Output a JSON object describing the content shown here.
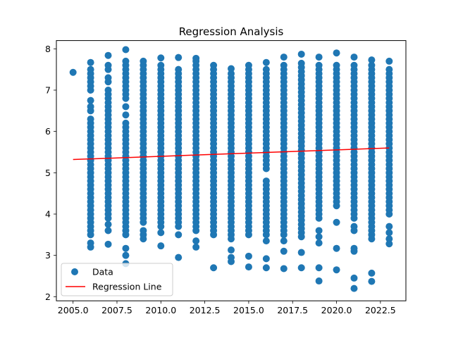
{
  "chart_data": {
    "type": "scatter",
    "title": "Regression Analysis",
    "xlabel": "",
    "ylabel": "",
    "xlim": [
      2004.05,
      2023.95
    ],
    "ylim": [
      1.9,
      8.2
    ],
    "xticks": [
      2005.0,
      2007.5,
      2010.0,
      2012.5,
      2015.0,
      2017.5,
      2020.0,
      2022.5
    ],
    "xtick_labels": [
      "2005.0",
      "2007.5",
      "2010.0",
      "2012.5",
      "2015.0",
      "2017.5",
      "2020.0",
      "2022.5"
    ],
    "yticks": [
      2,
      3,
      4,
      5,
      6,
      7,
      8
    ],
    "ytick_labels": [
      "2",
      "3",
      "4",
      "5",
      "6",
      "7",
      "8"
    ],
    "grid": false,
    "legend_position": "lower-left",
    "series": [
      {
        "name": "Data",
        "kind": "scatter",
        "color": "#1f77b4",
        "columns": [
          {
            "x": 2005,
            "y": [
              7.43
            ]
          },
          {
            "x": 2006,
            "y": [
              3.2,
              3.3,
              3.5,
              3.6,
              3.7,
              3.8,
              3.9,
              4.0,
              4.1,
              4.2,
              4.3,
              4.4,
              4.5,
              4.6,
              4.7,
              4.8,
              4.9,
              5.0,
              5.1,
              5.2,
              5.3,
              5.4,
              5.5,
              5.6,
              5.7,
              5.8,
              5.9,
              6.0,
              6.1,
              6.2,
              6.3,
              6.5,
              6.6,
              6.75,
              7.0,
              7.1,
              7.2,
              7.3,
              7.4,
              7.5,
              7.67
            ]
          },
          {
            "x": 2007,
            "y": [
              3.27,
              3.6,
              3.75,
              3.9,
              4.0,
              4.1,
              4.2,
              4.3,
              4.4,
              4.5,
              4.6,
              4.7,
              4.8,
              4.9,
              5.0,
              5.1,
              5.2,
              5.3,
              5.4,
              5.5,
              5.6,
              5.7,
              5.8,
              5.9,
              6.0,
              6.1,
              6.2,
              6.3,
              6.4,
              6.5,
              6.6,
              6.7,
              6.8,
              6.9,
              7.0,
              7.2,
              7.3,
              7.5,
              7.6,
              7.84
            ]
          },
          {
            "x": 2008,
            "y": [
              2.8,
              3.0,
              3.17,
              3.5,
              3.6,
              3.7,
              3.8,
              3.9,
              4.0,
              4.1,
              4.2,
              4.3,
              4.4,
              4.5,
              4.6,
              4.7,
              4.8,
              4.9,
              5.0,
              5.1,
              5.2,
              5.3,
              5.4,
              5.5,
              5.6,
              5.7,
              5.8,
              5.9,
              6.0,
              6.1,
              6.2,
              6.4,
              6.6,
              6.8,
              6.9,
              7.0,
              7.1,
              7.2,
              7.3,
              7.4,
              7.5,
              7.6,
              7.7,
              7.98
            ]
          },
          {
            "x": 2009,
            "y": [
              3.4,
              3.5,
              3.6,
              3.8,
              3.9,
              4.0,
              4.1,
              4.2,
              4.3,
              4.4,
              4.5,
              4.6,
              4.7,
              4.8,
              4.9,
              5.0,
              5.1,
              5.2,
              5.3,
              5.4,
              5.5,
              5.6,
              5.7,
              5.8,
              5.9,
              6.0,
              6.1,
              6.2,
              6.3,
              6.4,
              6.5,
              6.6,
              6.7,
              6.8,
              6.9,
              7.0,
              7.1,
              7.2,
              7.3,
              7.4,
              7.5,
              7.6,
              7.7
            ]
          },
          {
            "x": 2010,
            "y": [
              3.23,
              3.55,
              3.7,
              3.8,
              3.9,
              4.0,
              4.1,
              4.2,
              4.3,
              4.4,
              4.5,
              4.6,
              4.7,
              4.8,
              4.9,
              5.0,
              5.1,
              5.2,
              5.3,
              5.4,
              5.5,
              5.6,
              5.7,
              5.8,
              5.9,
              6.0,
              6.1,
              6.2,
              6.3,
              6.4,
              6.5,
              6.6,
              6.7,
              6.8,
              6.9,
              7.0,
              7.1,
              7.2,
              7.3,
              7.4,
              7.5,
              7.6,
              7.78
            ]
          },
          {
            "x": 2011,
            "y": [
              2.95,
              3.5,
              3.7,
              3.8,
              3.9,
              4.0,
              4.1,
              4.2,
              4.3,
              4.4,
              4.5,
              4.6,
              4.7,
              4.8,
              4.9,
              5.0,
              5.1,
              5.2,
              5.3,
              5.4,
              5.5,
              5.6,
              5.7,
              5.8,
              5.9,
              6.0,
              6.1,
              6.2,
              6.3,
              6.4,
              6.5,
              6.6,
              6.7,
              6.8,
              6.9,
              7.0,
              7.1,
              7.2,
              7.3,
              7.4,
              7.5,
              7.79
            ]
          },
          {
            "x": 2012,
            "y": [
              3.2,
              3.35,
              3.6,
              3.7,
              3.8,
              3.9,
              4.0,
              4.1,
              4.2,
              4.3,
              4.4,
              4.5,
              4.6,
              4.7,
              4.8,
              4.9,
              5.0,
              5.1,
              5.2,
              5.3,
              5.4,
              5.5,
              5.6,
              5.7,
              5.8,
              5.9,
              6.0,
              6.1,
              6.2,
              6.3,
              6.4,
              6.5,
              6.6,
              6.7,
              6.8,
              6.9,
              7.0,
              7.1,
              7.2,
              7.3,
              7.4,
              7.5,
              7.6,
              7.7,
              7.77
            ]
          },
          {
            "x": 2013,
            "y": [
              2.7,
              3.5,
              3.6,
              3.7,
              3.8,
              3.9,
              4.0,
              4.1,
              4.2,
              4.3,
              4.4,
              4.5,
              4.6,
              4.7,
              4.8,
              4.9,
              5.0,
              5.1,
              5.2,
              5.3,
              5.4,
              5.5,
              5.6,
              5.7,
              5.8,
              5.9,
              6.0,
              6.1,
              6.2,
              6.3,
              6.4,
              6.5,
              6.6,
              6.7,
              6.8,
              6.9,
              7.0,
              7.1,
              7.2,
              7.3,
              7.4,
              7.5,
              7.6
            ]
          },
          {
            "x": 2014,
            "y": [
              2.85,
              2.95,
              3.13,
              3.4,
              3.5,
              3.6,
              3.7,
              3.8,
              3.9,
              4.0,
              4.1,
              4.2,
              4.3,
              4.4,
              4.5,
              4.6,
              4.7,
              4.8,
              4.9,
              5.0,
              5.1,
              5.2,
              5.3,
              5.4,
              5.5,
              5.6,
              5.7,
              5.8,
              5.9,
              6.0,
              6.1,
              6.2,
              6.3,
              6.4,
              6.5,
              6.6,
              6.7,
              6.8,
              6.9,
              7.0,
              7.1,
              7.2,
              7.3,
              7.4,
              7.52
            ]
          },
          {
            "x": 2015,
            "y": [
              2.72,
              2.98,
              3.5,
              3.6,
              3.7,
              3.8,
              3.9,
              4.0,
              4.1,
              4.2,
              4.3,
              4.4,
              4.5,
              4.6,
              4.7,
              4.8,
              4.9,
              5.0,
              5.1,
              5.2,
              5.3,
              5.4,
              5.5,
              5.6,
              5.7,
              5.8,
              5.9,
              6.0,
              6.1,
              6.2,
              6.3,
              6.4,
              6.5,
              6.6,
              6.7,
              6.8,
              6.9,
              7.0,
              7.1,
              7.2,
              7.3,
              7.4,
              7.5,
              7.6
            ]
          },
          {
            "x": 2016,
            "y": [
              2.7,
              2.92,
              3.35,
              3.5,
              3.6,
              3.7,
              3.8,
              3.9,
              4.0,
              4.1,
              4.2,
              4.3,
              4.4,
              4.5,
              4.6,
              4.7,
              4.8,
              5.1,
              5.2,
              5.3,
              5.4,
              5.5,
              5.6,
              5.7,
              5.8,
              5.9,
              6.0,
              6.1,
              6.2,
              6.3,
              6.4,
              6.5,
              6.6,
              6.7,
              6.8,
              6.9,
              7.0,
              7.1,
              7.2,
              7.3,
              7.4,
              7.5,
              7.67
            ]
          },
          {
            "x": 2017,
            "y": [
              2.68,
              3.1,
              3.35,
              3.5,
              3.6,
              3.7,
              3.8,
              3.9,
              4.0,
              4.1,
              4.2,
              4.3,
              4.4,
              4.5,
              4.6,
              4.7,
              4.8,
              4.9,
              5.0,
              5.1,
              5.2,
              5.3,
              5.4,
              5.5,
              5.6,
              5.7,
              5.8,
              5.9,
              6.0,
              6.1,
              6.2,
              6.3,
              6.4,
              6.5,
              6.6,
              6.7,
              6.8,
              6.9,
              7.0,
              7.1,
              7.2,
              7.3,
              7.4,
              7.5,
              7.6,
              7.8
            ]
          },
          {
            "x": 2018,
            "y": [
              2.7,
              3.07,
              3.45,
              3.55,
              3.65,
              3.75,
              3.85,
              3.95,
              4.05,
              4.15,
              4.25,
              4.35,
              4.45,
              4.55,
              4.65,
              4.75,
              4.85,
              4.95,
              5.05,
              5.15,
              5.25,
              5.35,
              5.45,
              5.55,
              5.65,
              5.75,
              5.85,
              5.95,
              6.05,
              6.15,
              6.25,
              6.35,
              6.45,
              6.55,
              6.65,
              6.75,
              6.85,
              6.95,
              7.05,
              7.15,
              7.25,
              7.35,
              7.45,
              7.55,
              7.65,
              7.87
            ]
          },
          {
            "x": 2019,
            "y": [
              2.38,
              2.7,
              3.3,
              3.45,
              3.6,
              3.9,
              4.0,
              4.1,
              4.2,
              4.3,
              4.4,
              4.5,
              4.6,
              4.7,
              4.8,
              4.9,
              5.0,
              5.1,
              5.2,
              5.3,
              5.4,
              5.5,
              5.6,
              5.7,
              5.8,
              5.9,
              6.0,
              6.1,
              6.2,
              6.3,
              6.4,
              6.5,
              6.6,
              6.7,
              6.8,
              6.9,
              7.0,
              7.1,
              7.2,
              7.3,
              7.4,
              7.5,
              7.6,
              7.8
            ]
          },
          {
            "x": 2020,
            "y": [
              2.65,
              3.17,
              3.8,
              4.2,
              4.3,
              4.4,
              4.5,
              4.6,
              4.7,
              4.8,
              4.9,
              5.0,
              5.1,
              5.2,
              5.3,
              5.4,
              5.5,
              5.6,
              5.7,
              5.8,
              5.9,
              6.0,
              6.1,
              6.2,
              6.3,
              6.4,
              6.5,
              6.6,
              6.7,
              6.8,
              6.9,
              7.0,
              7.1,
              7.2,
              7.3,
              7.4,
              7.5,
              7.6,
              7.9
            ]
          },
          {
            "x": 2021,
            "y": [
              2.2,
              2.45,
              3.1,
              3.17,
              3.6,
              3.7,
              3.9,
              4.0,
              4.1,
              4.2,
              4.3,
              4.4,
              4.5,
              4.6,
              4.7,
              4.8,
              4.9,
              5.0,
              5.1,
              5.2,
              5.3,
              5.4,
              5.5,
              5.6,
              5.7,
              5.8,
              5.9,
              6.0,
              6.1,
              6.2,
              6.3,
              6.4,
              6.5,
              6.6,
              6.7,
              6.8,
              6.9,
              7.0,
              7.1,
              7.2,
              7.3,
              7.4,
              7.5,
              7.6,
              7.8
            ]
          },
          {
            "x": 2022,
            "y": [
              2.37,
              2.57,
              3.4,
              3.5,
              3.6,
              3.7,
              3.8,
              3.9,
              4.0,
              4.1,
              4.2,
              4.3,
              4.4,
              4.5,
              4.6,
              4.7,
              4.8,
              4.9,
              5.0,
              5.1,
              5.2,
              5.3,
              5.4,
              5.5,
              5.6,
              5.7,
              5.8,
              5.9,
              6.0,
              6.1,
              6.2,
              6.3,
              6.4,
              6.5,
              6.6,
              6.7,
              6.8,
              6.9,
              7.0,
              7.1,
              7.2,
              7.3,
              7.4,
              7.5,
              7.6,
              7.73
            ]
          },
          {
            "x": 2023,
            "y": [
              3.28,
              3.4,
              3.55,
              3.7,
              4.0,
              4.1,
              4.2,
              4.3,
              4.4,
              4.5,
              4.6,
              4.7,
              4.8,
              4.9,
              5.0,
              5.1,
              5.2,
              5.3,
              5.4,
              5.5,
              5.6,
              5.7,
              5.8,
              5.9,
              6.0,
              6.1,
              6.2,
              6.3,
              6.4,
              6.5,
              6.6,
              6.7,
              6.8,
              6.9,
              7.0,
              7.1,
              7.2,
              7.3,
              7.4,
              7.5,
              7.7
            ]
          }
        ]
      },
      {
        "name": "Regression Line",
        "kind": "line",
        "color": "#ff0000",
        "x": [
          2005,
          2023
        ],
        "y": [
          5.32,
          5.6
        ]
      }
    ]
  }
}
